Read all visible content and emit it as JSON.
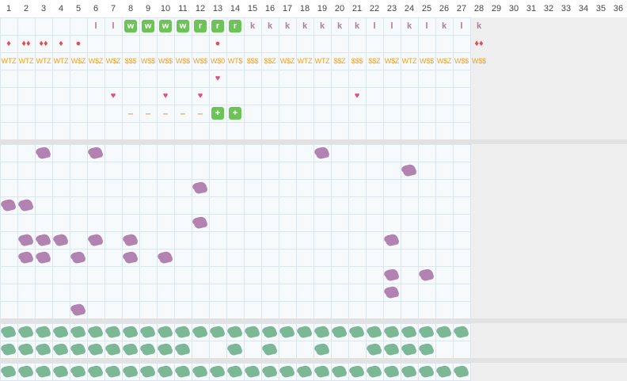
{
  "header": {
    "days": [
      "1",
      "2",
      "3",
      "4",
      "5",
      "6",
      "7",
      "8",
      "9",
      "10",
      "11",
      "12",
      "13",
      "14",
      "15",
      "16",
      "17",
      "18",
      "19",
      "20",
      "21",
      "22",
      "23",
      "24",
      "25",
      "26",
      "27",
      "28",
      "29",
      "30",
      "31",
      "32",
      "33",
      "34",
      "35",
      "36"
    ],
    "active_days": 27
  },
  "tracker": {
    "letters_row": [
      {
        "day": 6,
        "text": "l"
      },
      {
        "day": 7,
        "text": "l"
      },
      {
        "day": 8,
        "text": "w",
        "box": true
      },
      {
        "day": 9,
        "text": "w",
        "box": true
      },
      {
        "day": 10,
        "text": "w",
        "box": true
      },
      {
        "day": 11,
        "text": "w",
        "box": true
      },
      {
        "day": 12,
        "text": "r",
        "box": true
      },
      {
        "day": 13,
        "text": "r",
        "box": true
      },
      {
        "day": 14,
        "text": "r",
        "box": true
      },
      {
        "day": 15,
        "text": "k"
      },
      {
        "day": 16,
        "text": "k"
      },
      {
        "day": 17,
        "text": "k"
      },
      {
        "day": 18,
        "text": "k"
      },
      {
        "day": 19,
        "text": "k"
      },
      {
        "day": 20,
        "text": "k"
      },
      {
        "day": 21,
        "text": "k"
      },
      {
        "day": 22,
        "text": "l"
      },
      {
        "day": 23,
        "text": "l"
      },
      {
        "day": 24,
        "text": "k"
      },
      {
        "day": 25,
        "text": "l"
      },
      {
        "day": 26,
        "text": "k"
      },
      {
        "day": 27,
        "text": "l"
      },
      {
        "day": 28,
        "text": "k"
      }
    ],
    "drops_row": [
      {
        "day": 1,
        "text": "♦"
      },
      {
        "day": 2,
        "text": "♦♦"
      },
      {
        "day": 3,
        "text": "♦♦"
      },
      {
        "day": 4,
        "text": "♦"
      },
      {
        "day": 5,
        "text": "●"
      },
      {
        "day": 13,
        "text": "●"
      },
      {
        "day": 28,
        "text": "♦♦"
      }
    ],
    "codes_row": [
      {
        "day": 1,
        "text": "WTZ"
      },
      {
        "day": 2,
        "text": "WTZ"
      },
      {
        "day": 3,
        "text": "WTZ"
      },
      {
        "day": 4,
        "text": "WTZ"
      },
      {
        "day": 5,
        "text": "W$Z"
      },
      {
        "day": 6,
        "text": "W$Z"
      },
      {
        "day": 7,
        "text": "W$Z"
      },
      {
        "day": 8,
        "text": "$$$"
      },
      {
        "day": 9,
        "text": "W$$"
      },
      {
        "day": 10,
        "text": "W$$"
      },
      {
        "day": 11,
        "text": "W$$"
      },
      {
        "day": 12,
        "text": "W$$"
      },
      {
        "day": 13,
        "text": "W$0"
      },
      {
        "day": 14,
        "text": "WT$"
      },
      {
        "day": 15,
        "text": "$$$"
      },
      {
        "day": 16,
        "text": "$$Z"
      },
      {
        "day": 17,
        "text": "W$Z"
      },
      {
        "day": 18,
        "text": "WTZ"
      },
      {
        "day": 19,
        "text": "WTZ"
      },
      {
        "day": 20,
        "text": "$$Z"
      },
      {
        "day": 21,
        "text": "$$$"
      },
      {
        "day": 22,
        "text": "$$Z"
      },
      {
        "day": 23,
        "text": "W$Z"
      },
      {
        "day": 24,
        "text": "WTZ"
      },
      {
        "day": 25,
        "text": "W$$"
      },
      {
        "day": 26,
        "text": "W$Z"
      },
      {
        "day": 27,
        "text": "W$$"
      },
      {
        "day": 28,
        "text": "W$$"
      }
    ],
    "hearts_row1": [
      {
        "day": 13,
        "text": "♥"
      }
    ],
    "hearts_row2": [
      {
        "day": 7,
        "text": "♥"
      },
      {
        "day": 10,
        "text": "♥"
      },
      {
        "day": 12,
        "text": "♥"
      },
      {
        "day": 21,
        "text": "♥"
      }
    ],
    "dash_row": [
      {
        "day": 8,
        "text": "–"
      },
      {
        "day": 9,
        "text": "–"
      },
      {
        "day": 10,
        "text": "–"
      },
      {
        "day": 11,
        "text": "–"
      },
      {
        "day": 12,
        "text": "–"
      },
      {
        "day": 13,
        "text": "+",
        "box": true
      },
      {
        "day": 14,
        "text": "+",
        "box": true
      }
    ]
  },
  "purple_marks": [
    {
      "row": 0,
      "days": [
        3,
        6,
        19
      ]
    },
    {
      "row": 1,
      "days": [
        24
      ]
    },
    {
      "row": 2,
      "days": [
        12
      ]
    },
    {
      "row": 3,
      "days": [
        1,
        2
      ]
    },
    {
      "row": 4,
      "days": [
        12
      ]
    },
    {
      "row": 5,
      "days": [
        2,
        3,
        4,
        6,
        8,
        23
      ]
    },
    {
      "row": 6,
      "days": [
        2,
        3,
        5,
        8,
        10
      ]
    },
    {
      "row": 7,
      "days": [
        23,
        25
      ]
    },
    {
      "row": 8,
      "days": [
        23
      ]
    },
    {
      "row": 9,
      "days": [
        5
      ]
    }
  ],
  "green_marks": [
    {
      "row": 0,
      "days": [
        1,
        2,
        3,
        4,
        5,
        6,
        7,
        8,
        9,
        10,
        11,
        12,
        13,
        14,
        15,
        16,
        17,
        18,
        19,
        20,
        21,
        22,
        23,
        24,
        25,
        26,
        27
      ]
    },
    {
      "row": 1,
      "days": [
        1,
        2,
        3,
        4,
        5,
        6,
        7,
        8,
        9,
        10,
        11,
        14,
        16,
        19,
        22,
        23,
        24,
        25
      ]
    },
    {
      "row": 2,
      "days": [
        1,
        2,
        3,
        4,
        5,
        6,
        7,
        8,
        9,
        10,
        11,
        12,
        13,
        14,
        15,
        16,
        17,
        18,
        19,
        20,
        21,
        22,
        23,
        24,
        25,
        26,
        27
      ]
    }
  ],
  "colors": {
    "purple": "#b283b1",
    "green": "#7cb896",
    "accent": "#6cc456"
  }
}
